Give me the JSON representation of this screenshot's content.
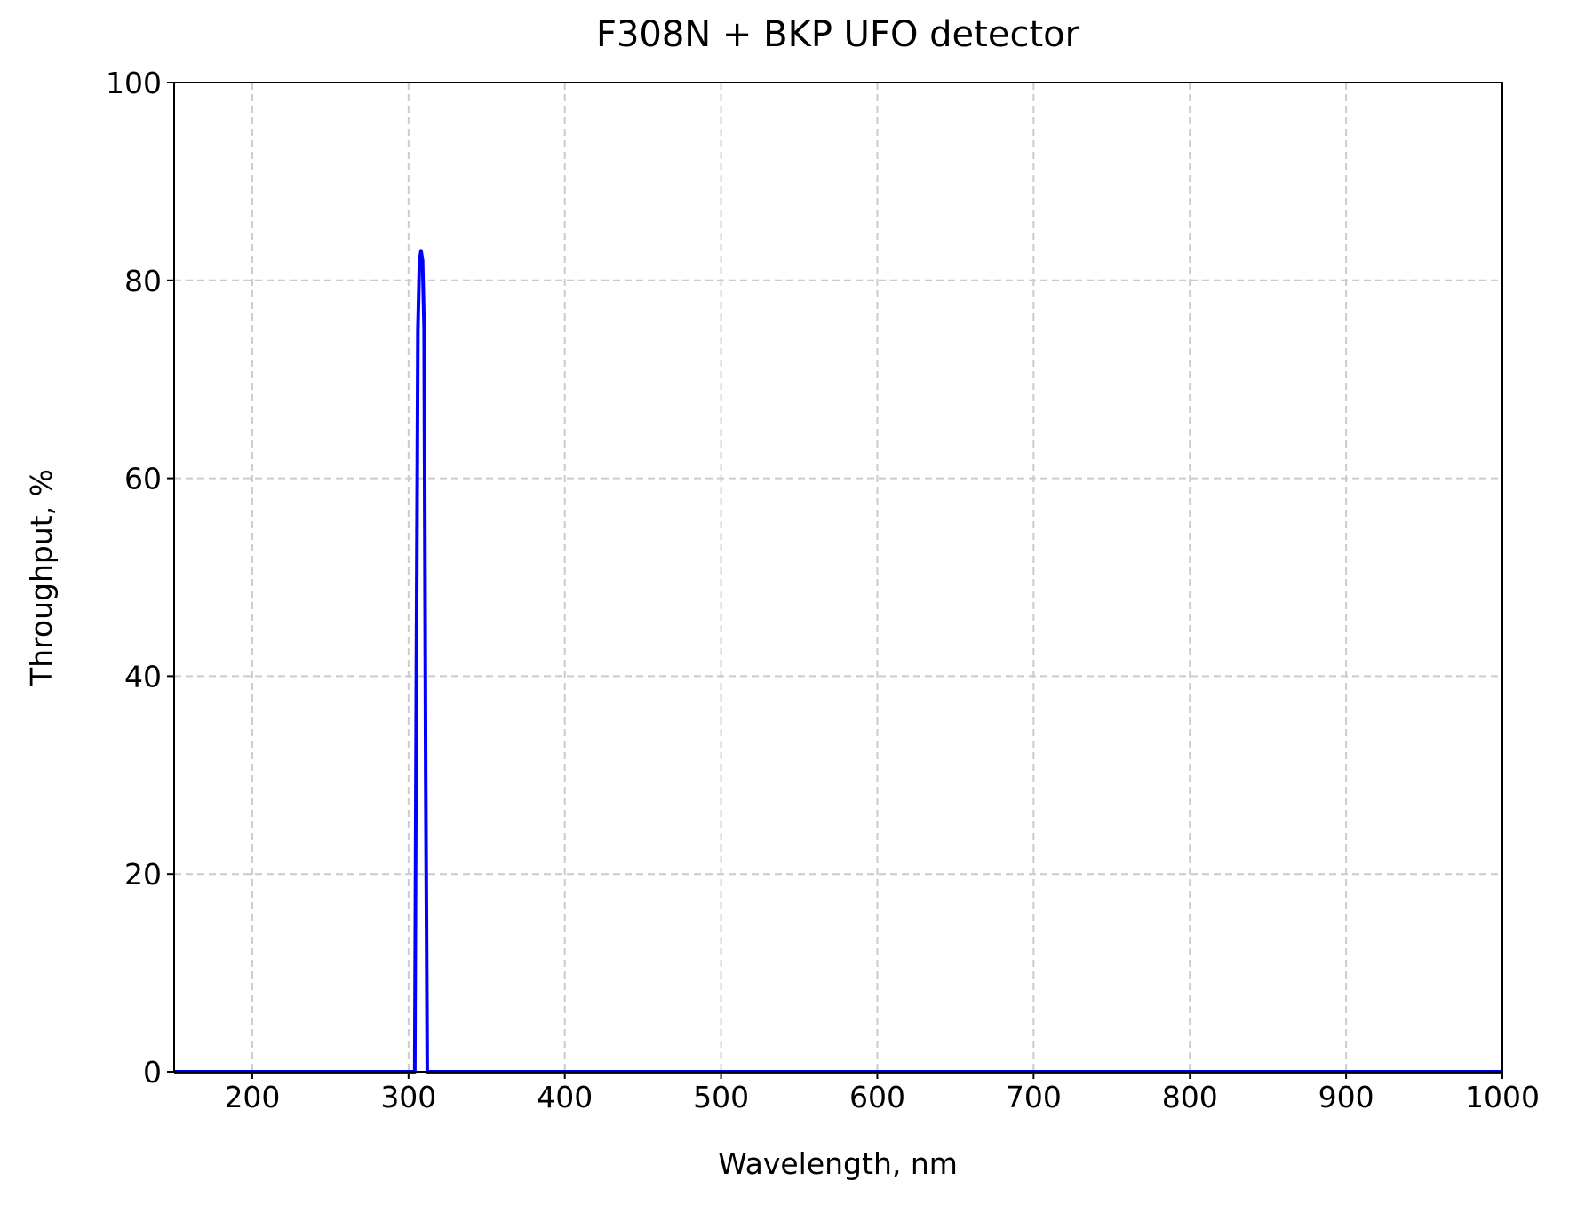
{
  "chart_data": {
    "type": "line",
    "title": "F308N + BKP UFO detector",
    "xlabel": "Wavelength, nm",
    "ylabel": "Throughput, %",
    "x": [
      150,
      200,
      300,
      304,
      305,
      306,
      307,
      308,
      309,
      310,
      311,
      312,
      320,
      1000
    ],
    "series": [
      {
        "color": "#0000ff",
        "values": [
          0,
          0,
          0,
          0,
          40,
          75,
          82,
          83,
          82,
          75,
          30,
          0,
          0,
          0
        ]
      }
    ],
    "xlim": [
      150,
      1000
    ],
    "ylim": [
      0,
      100
    ],
    "xticks": [
      200,
      300,
      400,
      500,
      600,
      700,
      800,
      900,
      1000
    ],
    "yticks": [
      0,
      20,
      40,
      60,
      80,
      100
    ],
    "grid": true
  }
}
